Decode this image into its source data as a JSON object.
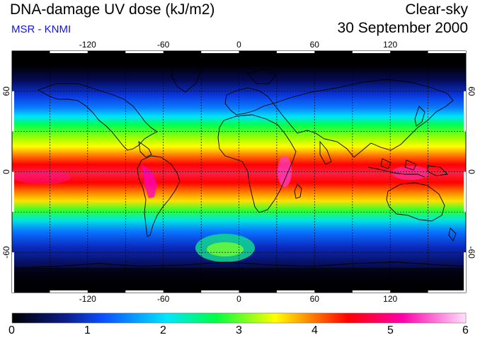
{
  "header": {
    "title": "DNA-damage UV dose (kJ/m2)",
    "source": "MSR - KNMI",
    "condition": "Clear-sky",
    "date": "30 September 2000"
  },
  "map": {
    "projection": "equirectangular",
    "lon_range": [
      -180,
      180
    ],
    "lat_range": [
      -90,
      90
    ],
    "lon_ticks": [
      "-120",
      "-60",
      "0",
      "60",
      "120"
    ],
    "lat_ticks": [
      "60",
      "0",
      "-60"
    ],
    "graticule": "dashed, every 30 degrees"
  },
  "colorbar": {
    "min": 0,
    "max": 6,
    "labels": [
      "0",
      "1",
      "2",
      "3",
      "4",
      "5",
      "6"
    ],
    "colors": [
      "#000000",
      "#0c1d8c",
      "#0a4fff",
      "#00e5ff",
      "#00ff40",
      "#ffff00",
      "#ff7f00",
      "#ff0000",
      "#ff00aa",
      "#ffe0ff"
    ]
  }
}
